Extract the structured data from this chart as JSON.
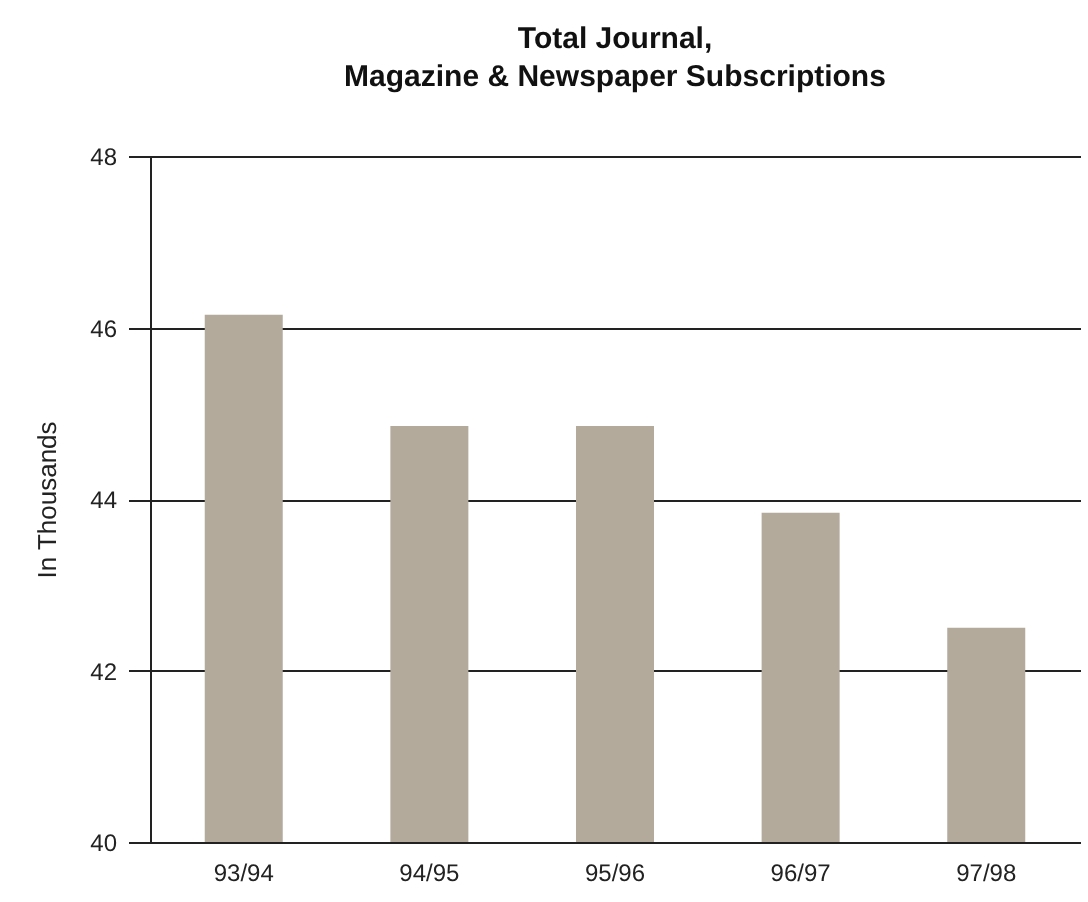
{
  "chart_data": {
    "type": "bar",
    "title": "Total Journal,\nMagazine & Newspaper Subscriptions",
    "ylabel": "In Thousands",
    "categories": [
      "93/94",
      "94/95",
      "95/96",
      "96/97",
      "97/98"
    ],
    "values": [
      46.15,
      44.85,
      44.85,
      43.84,
      42.5
    ],
    "color": "#b3aa9c",
    "ylim": [
      40,
      48
    ],
    "yticks": [
      40,
      42,
      44,
      46,
      48
    ],
    "grid": "y"
  }
}
